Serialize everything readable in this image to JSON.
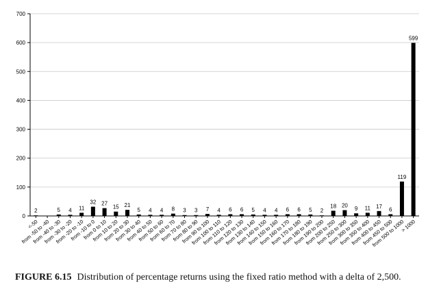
{
  "chart_data": {
    "type": "bar",
    "categories": [
      "<-50",
      "from -50 to -40",
      "from -40 to -30",
      "from -30 to -20",
      "from -20 to -10",
      "from -10 to 0",
      "from 0 to 10",
      "from 10 to 20",
      "from 20 to 30",
      "from 30 to 40",
      "from 40 to 50",
      "from 50 to 60",
      "from 60 to 70",
      "from 70 to 80",
      "from 80 to 90",
      "from 90 to 100",
      "from 100 to 110",
      "from 110 to 120",
      "from 120 to 130",
      "from 130 to 140",
      "from 140 to 150",
      "from 150 to 160",
      "from 160 to 170",
      "from 170 to 180",
      "from 180 to 190",
      "from 190 to 200",
      "from 200 to 250",
      "from 250 to 300",
      "from 300 to 350",
      "from 350 to 400",
      "from 400 to 450",
      "from 450 to 500",
      "from 500 to 1000",
      "> 1000"
    ],
    "values": [
      2,
      0,
      5,
      4,
      11,
      32,
      27,
      15,
      21,
      5,
      4,
      4,
      8,
      3,
      3,
      7,
      4,
      6,
      6,
      5,
      4,
      4,
      6,
      6,
      5,
      2,
      18,
      20,
      9,
      11,
      17,
      6,
      119,
      599
    ],
    "data_labels": [
      "2",
      "",
      "5",
      "4",
      "11",
      "32",
      "27",
      "15",
      "21",
      "5",
      "4",
      "4",
      "8",
      "3",
      "3",
      "7",
      "4",
      "6",
      "6",
      "5",
      "4",
      "4",
      "6",
      "6",
      "5",
      "2",
      "18",
      "20",
      "9",
      "11",
      "17",
      "6",
      "119",
      "599"
    ],
    "ylim": [
      0,
      700
    ],
    "yticks": [
      0,
      100,
      200,
      300,
      400,
      500,
      600,
      700
    ],
    "grid": true,
    "colors": {
      "bar": "#000000",
      "grid": "#c8c8c8"
    }
  },
  "caption": {
    "label": "FIGURE 6.15",
    "text": "Distribution of percentage returns using the fixed ratio method with a delta of 2,500."
  }
}
